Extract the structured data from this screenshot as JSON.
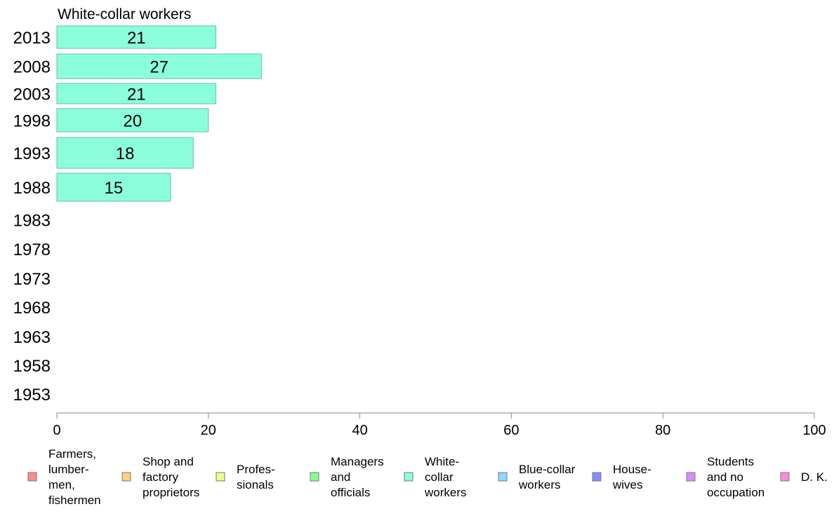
{
  "chart_data": {
    "type": "bar",
    "orientation": "horizontal",
    "title": "White-collar workers",
    "categories": [
      "2013",
      "2008",
      "2003",
      "1998",
      "1993",
      "1988",
      "1983",
      "1978",
      "1973",
      "1968",
      "1963",
      "1958",
      "1953"
    ],
    "values": [
      21,
      27,
      21,
      20,
      18,
      15,
      null,
      null,
      null,
      null,
      null,
      null,
      null
    ],
    "data_labels": [
      "21",
      "27",
      "21",
      "20",
      "18",
      "15",
      "",
      "",
      "",
      "",
      "",
      "",
      ""
    ],
    "bar_color": "#8bffdc",
    "bar_stroke": "#5fbfa3",
    "xlim": [
      0,
      100
    ],
    "xticks": [
      0,
      20,
      40,
      60,
      80,
      100
    ],
    "xlabel": "",
    "ylabel": "",
    "grid": false,
    "legend_placement": "bottom",
    "legend": [
      {
        "lines": [
          "Farmers,",
          "lumber-",
          "men,",
          "fishermen"
        ],
        "color": "#ff8a8a"
      },
      {
        "lines": [
          "Shop and",
          "factory",
          "proprietors"
        ],
        "color": "#ffd27f"
      },
      {
        "lines": [
          "Profes-",
          "sionals"
        ],
        "color": "#e8ff8a"
      },
      {
        "lines": [
          "Managers",
          "and",
          "officials"
        ],
        "color": "#8aff8a"
      },
      {
        "lines": [
          "White-",
          "collar",
          "workers"
        ],
        "color": "#8bffdc"
      },
      {
        "lines": [
          "Blue-collar",
          "workers"
        ],
        "color": "#8ad8ff"
      },
      {
        "lines": [
          "House-",
          "wives"
        ],
        "color": "#8a8aff"
      },
      {
        "lines": [
          "Students",
          "and no",
          "occupation"
        ],
        "color": "#d88aff"
      },
      {
        "lines": [
          "D. K."
        ],
        "color": "#ff8ad8"
      }
    ]
  }
}
